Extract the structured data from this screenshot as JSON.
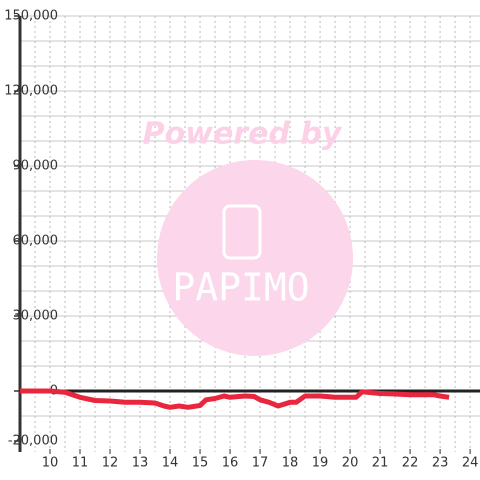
{
  "chart_data": {
    "type": "line",
    "watermark": {
      "top": "Powered by",
      "brand": "PAPIMO"
    },
    "x": [
      9,
      10,
      10.5,
      11,
      11.5,
      12,
      12.5,
      13,
      13.5,
      13.8,
      14,
      14.3,
      14.6,
      15,
      15.2,
      15.5,
      15.8,
      16,
      16.5,
      16.8,
      17,
      17.3,
      17.6,
      18,
      18.2,
      18.5,
      19,
      19.5,
      20,
      20.2,
      20.4,
      21,
      21.5,
      22,
      22.5,
      22.8,
      23,
      23.3
    ],
    "values": [
      0,
      0,
      -500,
      -2500,
      -3800,
      -4000,
      -4500,
      -4500,
      -4800,
      -6000,
      -6500,
      -6000,
      -6500,
      -5800,
      -3500,
      -3000,
      -2000,
      -2500,
      -2000,
      -2200,
      -3500,
      -4500,
      -6000,
      -4500,
      -4500,
      -2000,
      -2000,
      -2500,
      -2500,
      -2500,
      -300,
      -1000,
      -1200,
      -1500,
      -1500,
      -1500,
      -2000,
      -2500
    ],
    "color": "#e8263e",
    "xlim": [
      9,
      24.33
    ],
    "xticks": [
      10,
      11,
      12,
      13,
      14,
      15,
      16,
      17,
      18,
      19,
      20,
      21,
      22,
      23,
      24
    ],
    "xgrid": [
      9.5,
      10,
      10.5,
      11,
      11.5,
      12,
      12.5,
      13,
      13.5,
      14,
      14.5,
      15,
      15.5,
      16,
      16.5,
      17,
      17.5,
      18,
      18.5,
      19,
      19.5,
      20,
      20.5,
      21,
      21.5,
      22,
      22.5,
      23,
      23.5,
      24
    ],
    "ylim": [
      -20000,
      150000
    ],
    "yticks": [
      {
        "value": 150000,
        "label": "150,000"
      },
      {
        "value": 120000,
        "label": "120,000"
      },
      {
        "value": 90000,
        "label": "90,000"
      },
      {
        "value": 60000,
        "label": "60,000"
      },
      {
        "value": 30000,
        "label": "30,000"
      },
      0,
      {
        "value": -20000,
        "label": "-20,000"
      }
    ],
    "ygrid": [
      -10000,
      10000,
      20000,
      30000,
      40000,
      50000,
      60000,
      70000,
      80000,
      90000,
      100000,
      110000,
      120000,
      130000,
      140000,
      150000
    ],
    "grid": true
  }
}
